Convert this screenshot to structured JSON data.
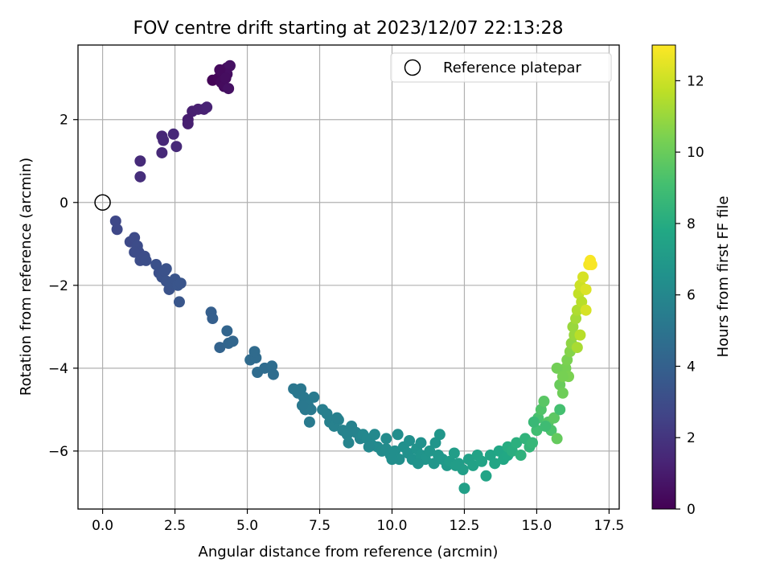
{
  "chart_data": {
    "type": "scatter",
    "title": "FOV centre drift starting at 2023/12/07 22:13:28",
    "xlabel": "Angular distance from reference (arcmin)",
    "ylabel": "Rotation from reference (arcmin)",
    "xlim": [
      -0.85,
      17.85
    ],
    "ylim": [
      -7.4,
      3.8
    ],
    "xticks": [
      0.0,
      2.5,
      5.0,
      7.5,
      10.0,
      12.5,
      15.0,
      17.5
    ],
    "xtick_labels": [
      "0.0",
      "2.5",
      "5.0",
      "7.5",
      "10.0",
      "12.5",
      "15.0",
      "17.5"
    ],
    "yticks": [
      -6,
      -4,
      -2,
      0,
      2
    ],
    "ytick_labels": [
      "−6",
      "−4",
      "−2",
      "0",
      "2"
    ],
    "grid": true,
    "colormap": "viridis",
    "colorbar": {
      "label": "Hours from first FF file",
      "range": [
        0,
        13
      ],
      "ticks": [
        0,
        2,
        4,
        6,
        8,
        10,
        12
      ],
      "tick_labels": [
        "0",
        "2",
        "4",
        "6",
        "8",
        "10",
        "12"
      ]
    },
    "legend": {
      "position": "top-right",
      "entries": [
        "Reference platepar"
      ]
    },
    "reference_point": {
      "x": 0.0,
      "y": 0.0
    },
    "series": [
      {
        "values_note": "",
        "points": [
          [
            3.8,
            2.95
          ],
          [
            4.0,
            3.0
          ],
          [
            4.1,
            3.15
          ],
          [
            4.2,
            3.2
          ],
          [
            4.3,
            3.25
          ],
          [
            4.4,
            3.3
          ],
          [
            4.1,
            2.9
          ],
          [
            4.2,
            2.8
          ],
          [
            4.3,
            3.1
          ],
          [
            4.35,
            2.75
          ],
          [
            4.05,
            3.2
          ],
          [
            4.25,
            3.0
          ],
          [
            3.1,
            2.2
          ],
          [
            3.3,
            2.25
          ],
          [
            3.5,
            2.25
          ],
          [
            3.6,
            2.3
          ],
          [
            2.95,
            2.0
          ],
          [
            2.95,
            1.9
          ],
          [
            1.3,
            1.0
          ],
          [
            1.3,
            0.62
          ],
          [
            2.05,
            1.6
          ],
          [
            2.1,
            1.5
          ],
          [
            2.45,
            1.65
          ],
          [
            2.55,
            1.35
          ],
          [
            2.05,
            1.2
          ],
          [
            0.45,
            -0.45
          ],
          [
            0.5,
            -0.65
          ],
          [
            0.95,
            -0.95
          ],
          [
            1.1,
            -0.85
          ],
          [
            1.2,
            -1.05
          ],
          [
            1.25,
            -1.2
          ],
          [
            1.3,
            -1.4
          ],
          [
            1.45,
            -1.3
          ],
          [
            1.5,
            -1.4
          ],
          [
            1.1,
            -1.2
          ],
          [
            1.85,
            -1.5
          ],
          [
            1.95,
            -1.7
          ],
          [
            2.05,
            -1.8
          ],
          [
            2.15,
            -1.65
          ],
          [
            2.2,
            -1.9
          ],
          [
            2.3,
            -2.1
          ],
          [
            2.4,
            -1.95
          ],
          [
            2.5,
            -1.85
          ],
          [
            2.6,
            -2.0
          ],
          [
            2.7,
            -1.95
          ],
          [
            2.65,
            -2.4
          ],
          [
            2.2,
            -1.6
          ],
          [
            3.75,
            -2.65
          ],
          [
            3.8,
            -2.8
          ],
          [
            4.05,
            -3.5
          ],
          [
            4.3,
            -3.1
          ],
          [
            4.35,
            -3.4
          ],
          [
            4.5,
            -3.35
          ],
          [
            5.1,
            -3.8
          ],
          [
            5.3,
            -3.75
          ],
          [
            5.35,
            -4.1
          ],
          [
            5.25,
            -3.6
          ],
          [
            5.6,
            -4.0
          ],
          [
            5.85,
            -3.95
          ],
          [
            5.9,
            -4.15
          ],
          [
            6.6,
            -4.5
          ],
          [
            6.75,
            -4.6
          ],
          [
            6.85,
            -4.5
          ],
          [
            6.95,
            -4.7
          ],
          [
            7.05,
            -4.8
          ],
          [
            7.1,
            -4.9
          ],
          [
            7.2,
            -5.0
          ],
          [
            7.3,
            -4.7
          ],
          [
            7.0,
            -5.0
          ],
          [
            6.9,
            -4.9
          ],
          [
            7.15,
            -5.3
          ],
          [
            6.7,
            -4.55
          ],
          [
            7.6,
            -5.0
          ],
          [
            7.75,
            -5.1
          ],
          [
            7.85,
            -5.3
          ],
          [
            8.0,
            -5.4
          ],
          [
            8.15,
            -5.25
          ],
          [
            8.3,
            -5.5
          ],
          [
            8.45,
            -5.6
          ],
          [
            8.6,
            -5.4
          ],
          [
            8.75,
            -5.55
          ],
          [
            8.9,
            -5.7
          ],
          [
            8.5,
            -5.8
          ],
          [
            8.1,
            -5.2
          ],
          [
            9.0,
            -5.6
          ],
          [
            9.15,
            -5.7
          ],
          [
            9.3,
            -5.85
          ],
          [
            9.5,
            -5.9
          ],
          [
            9.65,
            -6.0
          ],
          [
            9.8,
            -5.95
          ],
          [
            9.95,
            -6.1
          ],
          [
            10.1,
            -6.0
          ],
          [
            10.25,
            -6.2
          ],
          [
            10.4,
            -5.9
          ],
          [
            10.55,
            -6.05
          ],
          [
            10.7,
            -6.2
          ],
          [
            10.85,
            -5.95
          ],
          [
            11.0,
            -6.1
          ],
          [
            11.15,
            -6.2
          ],
          [
            11.3,
            -6.0
          ],
          [
            11.45,
            -6.3
          ],
          [
            11.6,
            -6.1
          ],
          [
            11.75,
            -6.2
          ],
          [
            11.9,
            -6.35
          ],
          [
            9.4,
            -5.6
          ],
          [
            9.8,
            -5.7
          ],
          [
            10.2,
            -5.6
          ],
          [
            10.6,
            -5.75
          ],
          [
            11.0,
            -5.8
          ],
          [
            11.5,
            -5.8
          ],
          [
            11.65,
            -5.6
          ],
          [
            9.2,
            -5.9
          ],
          [
            10.0,
            -6.2
          ],
          [
            10.9,
            -6.3
          ],
          [
            12.0,
            -6.25
          ],
          [
            12.15,
            -6.05
          ],
          [
            12.3,
            -6.3
          ],
          [
            12.45,
            -6.45
          ],
          [
            12.5,
            -6.9
          ],
          [
            12.65,
            -6.2
          ],
          [
            12.8,
            -6.35
          ],
          [
            12.95,
            -6.1
          ],
          [
            13.1,
            -6.25
          ],
          [
            13.25,
            -6.6
          ],
          [
            13.4,
            -6.1
          ],
          [
            13.55,
            -6.3
          ],
          [
            13.7,
            -6.0
          ],
          [
            13.85,
            -6.2
          ],
          [
            14.0,
            -6.1
          ],
          [
            12.2,
            -6.35
          ],
          [
            14.0,
            -5.9
          ],
          [
            14.15,
            -6.0
          ],
          [
            14.3,
            -5.8
          ],
          [
            14.45,
            -6.1
          ],
          [
            14.6,
            -5.7
          ],
          [
            14.75,
            -5.9
          ],
          [
            14.85,
            -5.8
          ],
          [
            15.0,
            -5.5
          ],
          [
            15.05,
            -5.2
          ],
          [
            15.15,
            -5.0
          ],
          [
            15.25,
            -4.8
          ],
          [
            15.4,
            -5.3
          ],
          [
            15.5,
            -5.5
          ],
          [
            15.6,
            -5.2
          ],
          [
            15.7,
            -5.7
          ],
          [
            15.8,
            -5.0
          ],
          [
            15.3,
            -5.4
          ],
          [
            14.9,
            -5.3
          ],
          [
            15.8,
            -4.4
          ],
          [
            15.9,
            -4.6
          ],
          [
            16.0,
            -4.0
          ],
          [
            16.05,
            -3.8
          ],
          [
            16.1,
            -4.2
          ],
          [
            16.15,
            -3.6
          ],
          [
            16.2,
            -3.4
          ],
          [
            16.25,
            -3.0
          ],
          [
            16.3,
            -3.2
          ],
          [
            16.35,
            -2.8
          ],
          [
            16.4,
            -2.6
          ],
          [
            16.45,
            -2.2
          ],
          [
            16.5,
            -2.0
          ],
          [
            16.55,
            -2.4
          ],
          [
            16.6,
            -1.8
          ],
          [
            16.7,
            -2.1
          ],
          [
            16.8,
            -1.5
          ],
          [
            16.85,
            -1.4
          ],
          [
            16.9,
            -1.5
          ],
          [
            16.7,
            -2.6
          ],
          [
            16.5,
            -3.2
          ],
          [
            16.4,
            -3.5
          ],
          [
            15.7,
            -4.0
          ],
          [
            15.9,
            -4.2
          ]
        ],
        "colors_hours": [
          0.1,
          0.2,
          0.3,
          0.4,
          0.5,
          0.6,
          0.3,
          0.4,
          0.5,
          0.6,
          0.35,
          0.45,
          1.1,
          1.15,
          1.2,
          1.25,
          1.05,
          1.1,
          1.6,
          1.7,
          1.4,
          1.45,
          1.5,
          1.55,
          1.5,
          2.8,
          2.8,
          2.9,
          2.95,
          3.0,
          3.0,
          3.05,
          3.05,
          3.1,
          3.0,
          3.2,
          3.2,
          3.25,
          3.25,
          3.3,
          3.3,
          3.35,
          3.35,
          3.4,
          3.4,
          3.45,
          3.25,
          3.9,
          3.9,
          4.1,
          4.2,
          4.2,
          4.25,
          4.5,
          4.5,
          4.55,
          4.5,
          4.6,
          4.65,
          4.65,
          5.1,
          5.15,
          5.15,
          5.2,
          5.2,
          5.25,
          5.25,
          5.3,
          5.25,
          5.2,
          5.3,
          5.15,
          5.5,
          5.55,
          5.6,
          5.65,
          5.65,
          5.7,
          5.75,
          5.7,
          5.75,
          5.8,
          5.8,
          5.6,
          6.0,
          6.05,
          6.1,
          6.15,
          6.2,
          6.25,
          6.3,
          6.35,
          6.4,
          6.45,
          6.5,
          6.55,
          6.6,
          6.65,
          6.7,
          6.75,
          6.8,
          6.85,
          6.9,
          6.95,
          6.1,
          6.2,
          6.3,
          6.4,
          6.5,
          6.7,
          6.8,
          6.05,
          6.35,
          6.6,
          7.1,
          7.15,
          7.2,
          7.25,
          7.3,
          7.35,
          7.4,
          7.45,
          7.5,
          7.55,
          7.6,
          7.65,
          7.7,
          7.75,
          7.8,
          7.2,
          8.0,
          8.1,
          8.2,
          8.3,
          8.4,
          8.5,
          8.6,
          9.0,
          9.2,
          9.4,
          9.6,
          9.5,
          9.3,
          9.7,
          9.9,
          9.1,
          8.9,
          8.7,
          10.0,
          10.1,
          10.3,
          10.4,
          10.4,
          10.6,
          10.8,
          11.0,
          11.0,
          11.2,
          11.4,
          11.8,
          12.0,
          11.6,
          12.2,
          12.3,
          12.8,
          12.9,
          12.9,
          12.2,
          11.6,
          11.3,
          10.2,
          10.3
        ]
      }
    ]
  }
}
